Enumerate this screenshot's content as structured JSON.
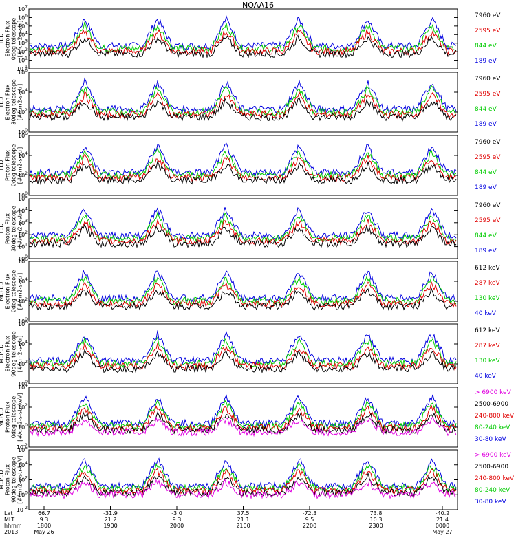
{
  "chart_data": {
    "type": "line",
    "title": "NOAA16",
    "panels": [
      {
        "ylabel_lines": [
          "TED",
          "Electron Flux",
          "0deg telescope",
          "[#/cm2-s-str]"
        ],
        "yticks": [
          "10^-1",
          "10^1",
          "10^2",
          "10^3",
          "10^4",
          "10^5",
          "10^6",
          "10^7"
        ],
        "legend": [
          {
            "label": "7960 eV",
            "color": "#000000"
          },
          {
            "label": "2595 eV",
            "color": "#e00000"
          },
          {
            "label": "844 eV",
            "color": "#00cc00"
          },
          {
            "label": "189 eV",
            "color": "#0000e0"
          }
        ]
      },
      {
        "ylabel_lines": [
          "TED",
          "Electron Flux",
          "30deg telescope",
          "[#/cm2-s-str]"
        ],
        "yticks": [
          "10^0",
          "10^2",
          "10^4",
          "10^6"
        ],
        "legend": [
          {
            "label": "7960 eV",
            "color": "#000000"
          },
          {
            "label": "2595 eV",
            "color": "#e00000"
          },
          {
            "label": "844 eV",
            "color": "#00cc00"
          },
          {
            "label": "189 eV",
            "color": "#0000e0"
          }
        ]
      },
      {
        "ylabel_lines": [
          "TED",
          "Proton Flux",
          "0deg telescope",
          "[#/cm2-s-str]"
        ],
        "yticks": [
          "10^0",
          "10^2",
          "10^4",
          "10^6"
        ],
        "legend": [
          {
            "label": "7960 eV",
            "color": "#000000"
          },
          {
            "label": "2595 eV",
            "color": "#e00000"
          },
          {
            "label": "844 eV",
            "color": "#00cc00"
          },
          {
            "label": "189 eV",
            "color": "#0000e0"
          }
        ]
      },
      {
        "ylabel_lines": [
          "TED",
          "Proton Flux",
          "30deg telescope",
          "[#/cm2-s-str]"
        ],
        "yticks": [
          "10^0",
          "10^1",
          "10^2",
          "10^3",
          "10^4",
          "10^5"
        ],
        "legend": [
          {
            "label": "7960 eV",
            "color": "#000000"
          },
          {
            "label": "2595 eV",
            "color": "#e00000"
          },
          {
            "label": "844 eV",
            "color": "#00cc00"
          },
          {
            "label": "189 eV",
            "color": "#0000e0"
          }
        ]
      },
      {
        "ylabel_lines": [
          "MEPED",
          "Electron Flux",
          "0deg telescope",
          "[#/cm2-s-str]"
        ],
        "yticks": [
          "10^0",
          "10^2",
          "10^4",
          "10^6"
        ],
        "legend": [
          {
            "label": "612 keV",
            "color": "#000000"
          },
          {
            "label": "287 keV",
            "color": "#e00000"
          },
          {
            "label": "130 keV",
            "color": "#00cc00"
          },
          {
            "label": "40 keV",
            "color": "#0000e0"
          }
        ]
      },
      {
        "ylabel_lines": [
          "MEPED",
          "Electron Flux",
          "90deg telescope",
          "[#/cm2-s-str]"
        ],
        "yticks": [
          "10^0",
          "10^2",
          "10^4",
          "10^6"
        ],
        "legend": [
          {
            "label": "612 keV",
            "color": "#000000"
          },
          {
            "label": "287 keV",
            "color": "#e00000"
          },
          {
            "label": "130 keV",
            "color": "#00cc00"
          },
          {
            "label": "40 keV",
            "color": "#0000e0"
          }
        ]
      },
      {
        "ylabel_lines": [
          "MEPED",
          "Proton Flux",
          "0deg telescope",
          "[#/cm2-s-str-keV]"
        ],
        "yticks": [
          "10^-2",
          "10^0",
          "10^2",
          "10^4"
        ],
        "legend": [
          {
            "label": "> 6900 keV",
            "color": "#e000e0"
          },
          {
            "label": "2500-6900",
            "color": "#000000"
          },
          {
            "label": "240-800 keV",
            "color": "#e00000"
          },
          {
            "label": "80-240 keV",
            "color": "#00cc00"
          },
          {
            "label": "30-80 keV",
            "color": "#0000e0"
          }
        ]
      },
      {
        "ylabel_lines": [
          "MEPED",
          "Proton Flux",
          "90deg telescope",
          "[#/cm2-s-str-keV]"
        ],
        "yticks": [
          "10^-2",
          "10^0",
          "10^2",
          "10^4",
          "10^6"
        ],
        "legend": [
          {
            "label": "> 6900 keV",
            "color": "#e000e0"
          },
          {
            "label": "2500-6900",
            "color": "#000000"
          },
          {
            "label": "240-800 keV",
            "color": "#e00000"
          },
          {
            "label": "80-240 keV",
            "color": "#00cc00"
          },
          {
            "label": "30-80 keV",
            "color": "#0000e0"
          }
        ]
      }
    ],
    "xaxis": {
      "row_labels": [
        "Lat",
        "MLT",
        "hhmm",
        "2013"
      ],
      "ticks": [
        {
          "lat": "66.7",
          "mlt": "9.3",
          "hhmm": "1800",
          "date": "May 26"
        },
        {
          "lat": "-31.9",
          "mlt": "21.2",
          "hhmm": "1900",
          "date": ""
        },
        {
          "lat": "-3.0",
          "mlt": "9.3",
          "hhmm": "2000",
          "date": ""
        },
        {
          "lat": "37.5",
          "mlt": "21.1",
          "hhmm": "2100",
          "date": ""
        },
        {
          "lat": "-72.3",
          "mlt": "9.5",
          "hhmm": "2200",
          "date": ""
        },
        {
          "lat": "73.8",
          "mlt": "10.3",
          "hhmm": "2300",
          "date": ""
        },
        {
          "lat": "-40.2",
          "mlt": "21.4",
          "hhmm": "0000",
          "date": "May 27"
        }
      ]
    }
  }
}
